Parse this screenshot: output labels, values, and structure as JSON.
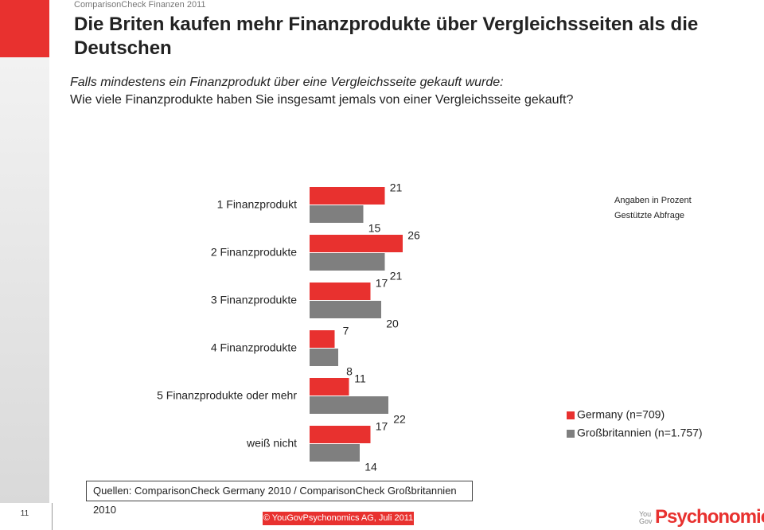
{
  "header": {
    "series_title": "ComparisonCheck Finanzen 2011"
  },
  "chart_data": {
    "type": "bar",
    "orientation": "horizontal",
    "title": "Die Briten kaufen mehr Finanzprodukte über Vergleichsseiten als die Deutschen",
    "subtitle": "Falls mindestens ein Finanzprodukt über eine Vergleichsseite gekauft wurde:",
    "question": "Wie viele Finanzprodukte haben Sie insgesamt jemals von einer Vergleichsseite gekauft?",
    "annotations": [
      "Angaben in Prozent",
      "Gestützte Abfrage"
    ],
    "categories": [
      "1 Finanzprodukt",
      "2 Finanzprodukte",
      "3 Finanzprodukte",
      "4 Finanzprodukte",
      "5 Finanzprodukte oder mehr",
      "weiß nicht"
    ],
    "series": [
      {
        "name": "Germany (n=709)",
        "color": "#e8312f",
        "values": [
          21,
          26,
          17,
          7,
          11,
          17
        ]
      },
      {
        "name": "Großbritannien (n=1.757)",
        "color": "#7f7f7f",
        "values": [
          15,
          21,
          20,
          8,
          22,
          14
        ]
      }
    ],
    "source": "Quellen: ComparisonCheck Germany 2010 / ComparisonCheck Großbritannien 2010"
  },
  "footer": {
    "page": "11",
    "copyright": "© YouGovPsychonomics AG, Juli 2011",
    "logo_prefix": "YouGov",
    "logo_name": "Psychonomics"
  }
}
